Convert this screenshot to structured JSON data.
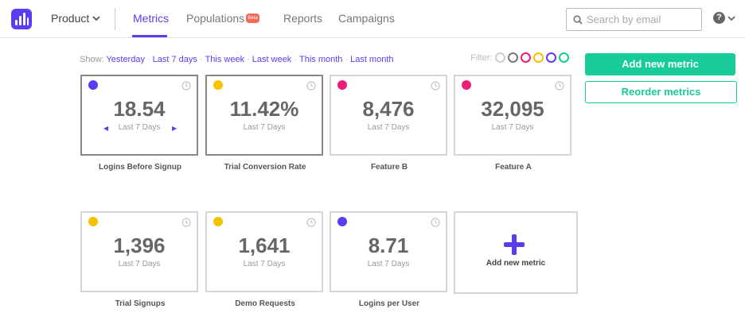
{
  "nav": {
    "product": "Product",
    "tabs": [
      "Metrics",
      "Populations",
      "Reports",
      "Campaigns"
    ],
    "beta": "Beta",
    "search_placeholder": "Search by email",
    "help": "?"
  },
  "show": {
    "label": "Show:",
    "options": [
      "Yesterday",
      "Last 7 days",
      "This week",
      "Last week",
      "This month",
      "Last month"
    ]
  },
  "filter": {
    "label": "Filter:",
    "colors": [
      "#cccccc",
      "#777777",
      "#ec1e79",
      "#f5c200",
      "#5b3cf0",
      "#17cc98"
    ]
  },
  "buttons": {
    "add": "Add new metric",
    "reorder": "Reorder metrics"
  },
  "metrics": [
    {
      "value": "18.54",
      "period": "Last 7 Days",
      "label": "Logins Before Signup",
      "color": "#5b3cf0"
    },
    {
      "value": "11.42%",
      "period": "Last 7 Days",
      "label": "Trial Conversion Rate",
      "color": "#f5c200"
    },
    {
      "value": "8,476",
      "period": "Last 7 Days",
      "label": "Feature B",
      "color": "#ec1e79"
    },
    {
      "value": "32,095",
      "period": "Last 7 Days",
      "label": "Feature A",
      "color": "#ec1e79"
    },
    {
      "value": "1,396",
      "period": "Last 7 Days",
      "label": "Trial Signups",
      "color": "#f5c200"
    },
    {
      "value": "1,641",
      "period": "Last 7 Days",
      "label": "Demo Requests",
      "color": "#f5c200"
    },
    {
      "value": "8.71",
      "period": "Last 7 Days",
      "label": "Logins per User",
      "color": "#5b3cf0"
    }
  ],
  "add_card_label": "Add new metric"
}
